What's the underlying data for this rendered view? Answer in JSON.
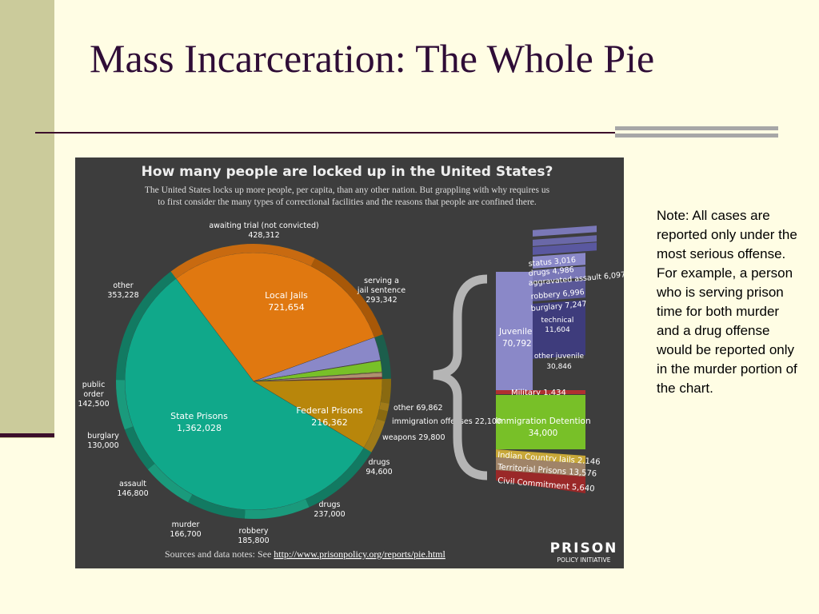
{
  "slide": {
    "title": "Mass Incarceration: The Whole Pie",
    "note": "Note: All cases are reported only under the most serious offense. For example, a person who is serving prison time for both murder and a drug offense would be reported only in the murder portion of the chart."
  },
  "colors": {
    "slide_bg": "#fffde4",
    "title": "#2f0d37",
    "chart_bg": "#3d3d3d",
    "state_prisons": "#10a88a",
    "local_jails": "#e07810",
    "federal_prisons": "#b8860b",
    "juvenile": "#8a88c8",
    "immigration": "#78c028",
    "military": "#b03030",
    "civil_commitment": "#9a2828",
    "outer_ring": "#1c5e4c"
  },
  "chart_data": {
    "type": "pie",
    "title": "How many people are locked up in the United States?",
    "subtitle": [
      "The United States locks up more people, per capita, than any other nation.  But grappling with why requires us",
      "to first consider the many types of correctional facilities and the reasons that people are confined there."
    ],
    "source_prefix": "Sources and data notes: See ",
    "source_link": "http://www.prisonpolicy.org/reports/pie.html",
    "logo": {
      "name": "PRISON",
      "sub": "POLICY INITIATIVE"
    },
    "slices": [
      {
        "key": "state",
        "label": "State Prisons",
        "value_text": "1,362,028",
        "value": 1362028
      },
      {
        "key": "local",
        "label": "Local Jails",
        "value_text": "721,654",
        "value": 721654
      },
      {
        "key": "federal",
        "label": "Federal Prisons",
        "value_text": "216,362",
        "value": 216362
      },
      {
        "key": "juvenile",
        "label": "Juvenile",
        "value_text": "70,792",
        "value": 70792
      },
      {
        "key": "military",
        "label": "Military",
        "value_text": "1,434",
        "value": 1434
      },
      {
        "key": "immigration",
        "label": "Immigration Detention",
        "value_text": "34,000",
        "value": 34000
      },
      {
        "key": "indian",
        "label": "Indian Country Jails",
        "value_text": "2,146",
        "value": 2146
      },
      {
        "key": "territorial",
        "label": "Territorial Prisons",
        "value_text": "13,576",
        "value": 13576
      },
      {
        "key": "civil",
        "label": "Civil Commitment",
        "value_text": "5,640",
        "value": 5640
      }
    ],
    "breakdowns": {
      "local": [
        {
          "label": "awaiting trial (not convicted)",
          "value_text": "428,312",
          "value": 428312
        },
        {
          "label": "serving a jail sentence",
          "value_text": "293,342",
          "value": 293342
        }
      ],
      "state": [
        {
          "label": "drugs",
          "value_text": "237,000",
          "value": 237000
        },
        {
          "label": "robbery",
          "value_text": "185,800",
          "value": 185800
        },
        {
          "label": "murder",
          "value_text": "166,700",
          "value": 166700
        },
        {
          "label": "assault",
          "value_text": "146,800",
          "value": 146800
        },
        {
          "label": "burglary",
          "value_text": "130,000",
          "value": 130000
        },
        {
          "label": "public order",
          "value_text": "142,500",
          "value": 142500
        },
        {
          "label": "other",
          "value_text": "353,228",
          "value": 353228
        }
      ],
      "federal": [
        {
          "label": "other",
          "value_text": "69,862",
          "value": 69862
        },
        {
          "label": "immigration offenses",
          "value_text": "22,100",
          "value": 22100
        },
        {
          "label": "weapons",
          "value_text": "29,800",
          "value": 29800
        },
        {
          "label": "drugs",
          "value_text": "94,600",
          "value": 94600
        }
      ],
      "juvenile": [
        {
          "label": "status",
          "value_text": "3,016",
          "value": 3016
        },
        {
          "label": "drugs",
          "value_text": "4,986",
          "value": 4986
        },
        {
          "label": "aggravated assault",
          "value_text": "6,097",
          "value": 6097
        },
        {
          "label": "robbery",
          "value_text": "6,996",
          "value": 6996
        },
        {
          "label": "burglary",
          "value_text": "7,247",
          "value": 7247
        },
        {
          "label": "technical",
          "value_text": "11,604",
          "value": 11604
        },
        {
          "label": "other juvenile",
          "value_text": "30,846",
          "value": 30846
        }
      ]
    }
  }
}
